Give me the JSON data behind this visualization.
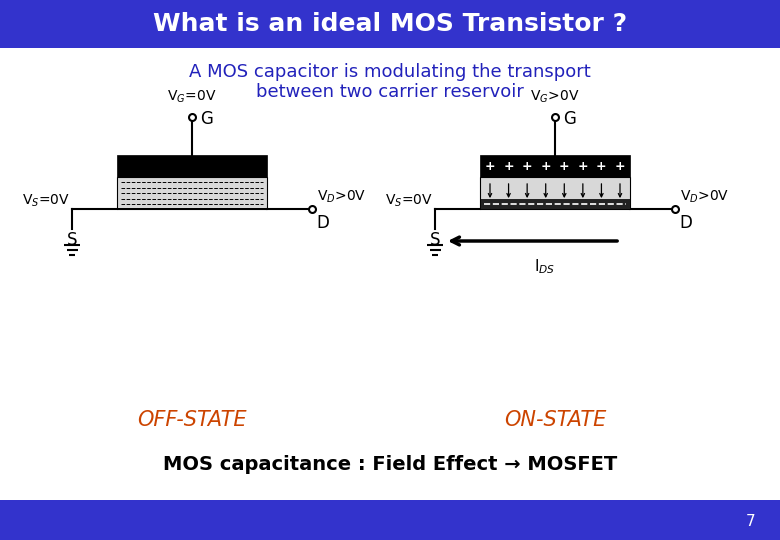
{
  "title": "What is an ideal MOS Transistor ?",
  "title_bg": "#3333cc",
  "title_color": "white",
  "subtitle_line1": "A MOS capacitor is modulating the transport",
  "subtitle_line2": "between two carrier reservoir",
  "subtitle_color": "#2222bb",
  "off_state_label": "OFF-STATE",
  "on_state_label": "ON-STATE",
  "state_color": "#cc4400",
  "bottom_text": "MOS capacitance : Field Effect → MOSFET",
  "bottom_bg": "#3333cc",
  "page_number": "7",
  "bg_color": "white",
  "fig_w": 7.8,
  "fig_h": 5.4,
  "dpi": 100
}
